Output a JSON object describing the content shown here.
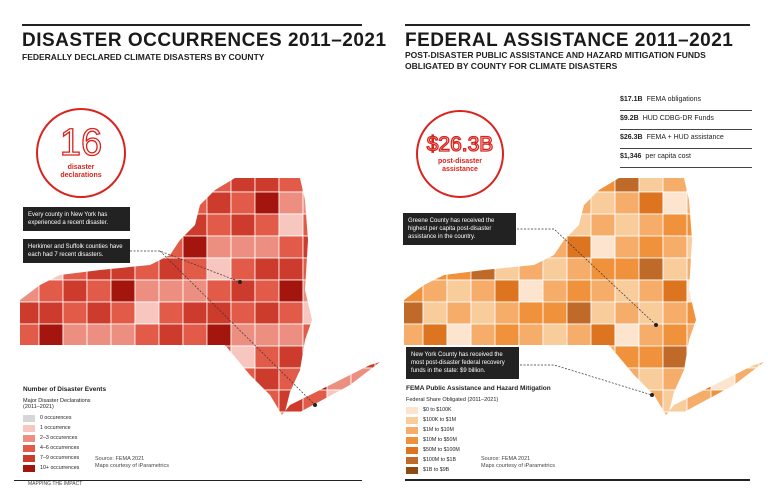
{
  "left": {
    "title": "DISASTER OCCURRENCES 2011–2021",
    "subtitle": "FEDERALLY DECLARED CLIMATE DISASTERS BY COUNTY",
    "badge": {
      "value": "16",
      "label1": "disaster",
      "label2": "declarations"
    },
    "notes": [
      "Every county in New York has experienced a recent disaster.",
      "Herkimer and Suffolk counties have each had 7 recent disasters."
    ],
    "legend": {
      "title": "Number of Disaster Events",
      "subtitle": "Major Disaster Declarations (2011–2021)",
      "items": [
        {
          "label": "0 occurences",
          "color": "#d6d6d6"
        },
        {
          "label": "1 occurrence",
          "color": "#f6c6bf"
        },
        {
          "label": "2–3 occurences",
          "color": "#ec8f80"
        },
        {
          "label": "4–6 occurrences",
          "color": "#e25b48"
        },
        {
          "label": "7–9 occurrences",
          "color": "#cc3b2b"
        },
        {
          "label": "10+ occurrences",
          "color": "#a3150d"
        }
      ]
    },
    "source": "Source: FEMA 2021",
    "credit": "Maps courtesy of iParametrics",
    "footer": "MAPPING THE IMPACT"
  },
  "right": {
    "title": "FEDERAL ASSISTANCE 2011–2021",
    "subtitle1": "POST-DISASTER PUBLIC ASSISTANCE AND HAZARD MITIGATION FUNDS",
    "subtitle2": "OBLIGATED BY COUNTY FOR CLIMATE DISASTERS",
    "badge": {
      "value": "$26.3B",
      "label1": "post-disaster",
      "label2": "assistance"
    },
    "stats": [
      {
        "value": "$17.1B",
        "label": "FEMA obligations"
      },
      {
        "value": "$9.2B",
        "label": "HUD CDBG-DR Funds"
      },
      {
        "value": "$26.3B",
        "label": "FEMA + HUD assistance"
      },
      {
        "value": "$1,346",
        "label": "per capita cost"
      }
    ],
    "notes": [
      "Greene County has received the highest per capita post-disaster assistance in the country.",
      "New York County has received the most post-disaster federal recovery funds in the state: $9 billion."
    ],
    "legend": {
      "title": "FEMA Public Assistance and Hazard Mitigation",
      "subtitle": "Federal Share Obligated (2011–2021)",
      "items": [
        {
          "label": "$0 to $100K",
          "color": "#fce4cf"
        },
        {
          "label": "$100K to $1M",
          "color": "#f9cc9c"
        },
        {
          "label": "$1M to $10M",
          "color": "#f6ad6a"
        },
        {
          "label": "$10M to $50M",
          "color": "#f0923b"
        },
        {
          "label": "$50M to $100M",
          "color": "#dc7420"
        },
        {
          "label": "$100M to $1B",
          "color": "#c06a2a"
        },
        {
          "label": "$1B to $9B",
          "color": "#8f4a12"
        }
      ]
    },
    "source": "Source: FEMA 2021",
    "credit": "Maps courtesy of iParametrics"
  }
}
